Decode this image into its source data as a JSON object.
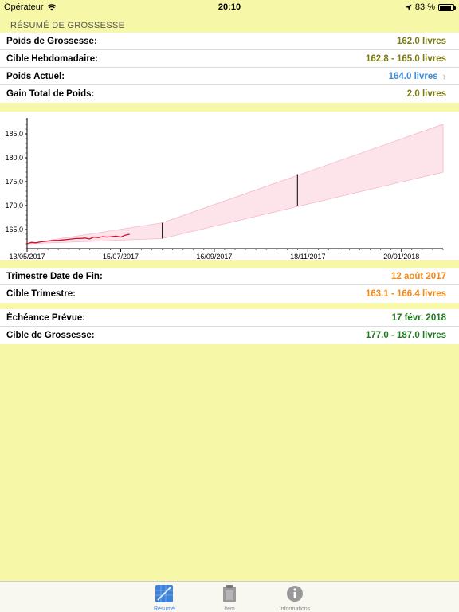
{
  "status_bar": {
    "carrier": "Opérateur",
    "time": "20:10",
    "battery": "83 %"
  },
  "section_title": "RÉSUMÉ DE GROSSESSE",
  "summary": [
    {
      "label": "Poids de Grossesse:",
      "value": "162.0 livres",
      "color": "#7c7c14"
    },
    {
      "label": "Cible Hebdomadaire:",
      "value": "162.8 - 165.0 livres",
      "color": "#7c7c14"
    },
    {
      "label": "Poids Actuel:",
      "value": "164.0 livres",
      "color": "#3b8fd8"
    },
    {
      "label": "Gain Total de Poids:",
      "value": "2.0 livres",
      "color": "#7c7c14"
    }
  ],
  "trimester": [
    {
      "label": "Trimestre Date de Fin:",
      "value": "12 août 2017",
      "color": "#f28a1a"
    },
    {
      "label": "Cible Trimestre:",
      "value": "163.1 - 166.4 livres",
      "color": "#f28a1a"
    }
  ],
  "due": [
    {
      "label": "Échéance Prévue:",
      "value": "17 févr. 2018",
      "color": "#1f7a1f"
    },
    {
      "label": "Cible de Grossesse:",
      "value": "177.0 - 187.0 livres",
      "color": "#1f7a1f"
    }
  ],
  "tabs": [
    {
      "label": "Résumé",
      "icon": "chart-icon",
      "active": true
    },
    {
      "label": "Item",
      "icon": "clipboard-icon",
      "active": false
    },
    {
      "label": "Informations",
      "icon": "info-icon",
      "active": false
    }
  ],
  "chart_data": {
    "type": "line",
    "x_tick_labels": [
      "13/05/2017",
      "15/07/2017",
      "16/09/2017",
      "18/11/2017",
      "20/01/2018"
    ],
    "y_tick_labels": [
      "165,0",
      "170,0",
      "175,0",
      "180,0",
      "185,0"
    ],
    "ylim": [
      161,
      188
    ],
    "x_start": "2017-05-13",
    "x_end": "2018-02-17",
    "target_band": {
      "x": [
        "2017-05-13",
        "2017-08-12",
        "2018-02-17"
      ],
      "lower": [
        162.0,
        163.1,
        177.0
      ],
      "upper": [
        162.0,
        166.4,
        187.0
      ]
    },
    "trimester_markers": [
      {
        "x": "2017-08-12",
        "low": 163.1,
        "high": 166.4
      },
      {
        "x": "2017-11-11",
        "low": 170.0,
        "high": 176.6
      }
    ],
    "series": [
      {
        "color": "#d0102a",
        "x": [
          "2017-05-13",
          "2017-05-16",
          "2017-05-19",
          "2017-05-22",
          "2017-05-25",
          "2017-05-28",
          "2017-05-31",
          "2017-06-03",
          "2017-06-06",
          "2017-06-09",
          "2017-06-12",
          "2017-06-15",
          "2017-06-18",
          "2017-06-21",
          "2017-06-24",
          "2017-06-27",
          "2017-06-30",
          "2017-07-03",
          "2017-07-06",
          "2017-07-09",
          "2017-07-12",
          "2017-07-15",
          "2017-07-18",
          "2017-07-21"
        ],
        "y": [
          162.0,
          162.3,
          162.2,
          162.4,
          162.5,
          162.6,
          162.7,
          162.7,
          162.8,
          162.9,
          163.0,
          163.1,
          163.1,
          163.2,
          163.0,
          163.4,
          163.3,
          163.5,
          163.4,
          163.5,
          163.6,
          163.4,
          163.8,
          164.0
        ]
      }
    ]
  }
}
